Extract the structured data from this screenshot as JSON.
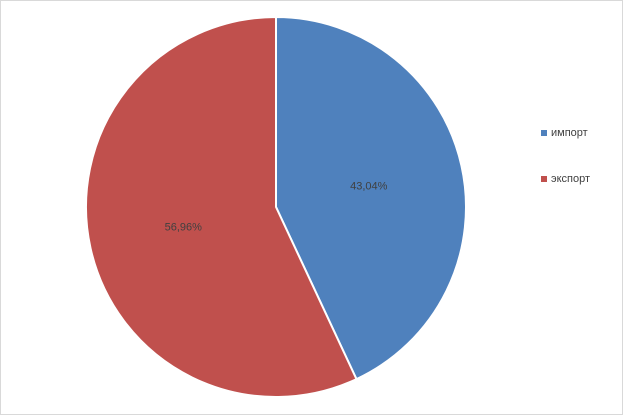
{
  "chart_data": {
    "type": "pie",
    "categories": [
      "импорт",
      "экспорт"
    ],
    "values": [
      43.04,
      56.96
    ],
    "value_labels": [
      "43,04%",
      "56,96%"
    ],
    "colors": [
      "#4f81bd",
      "#c0504d"
    ],
    "legend": "right"
  }
}
